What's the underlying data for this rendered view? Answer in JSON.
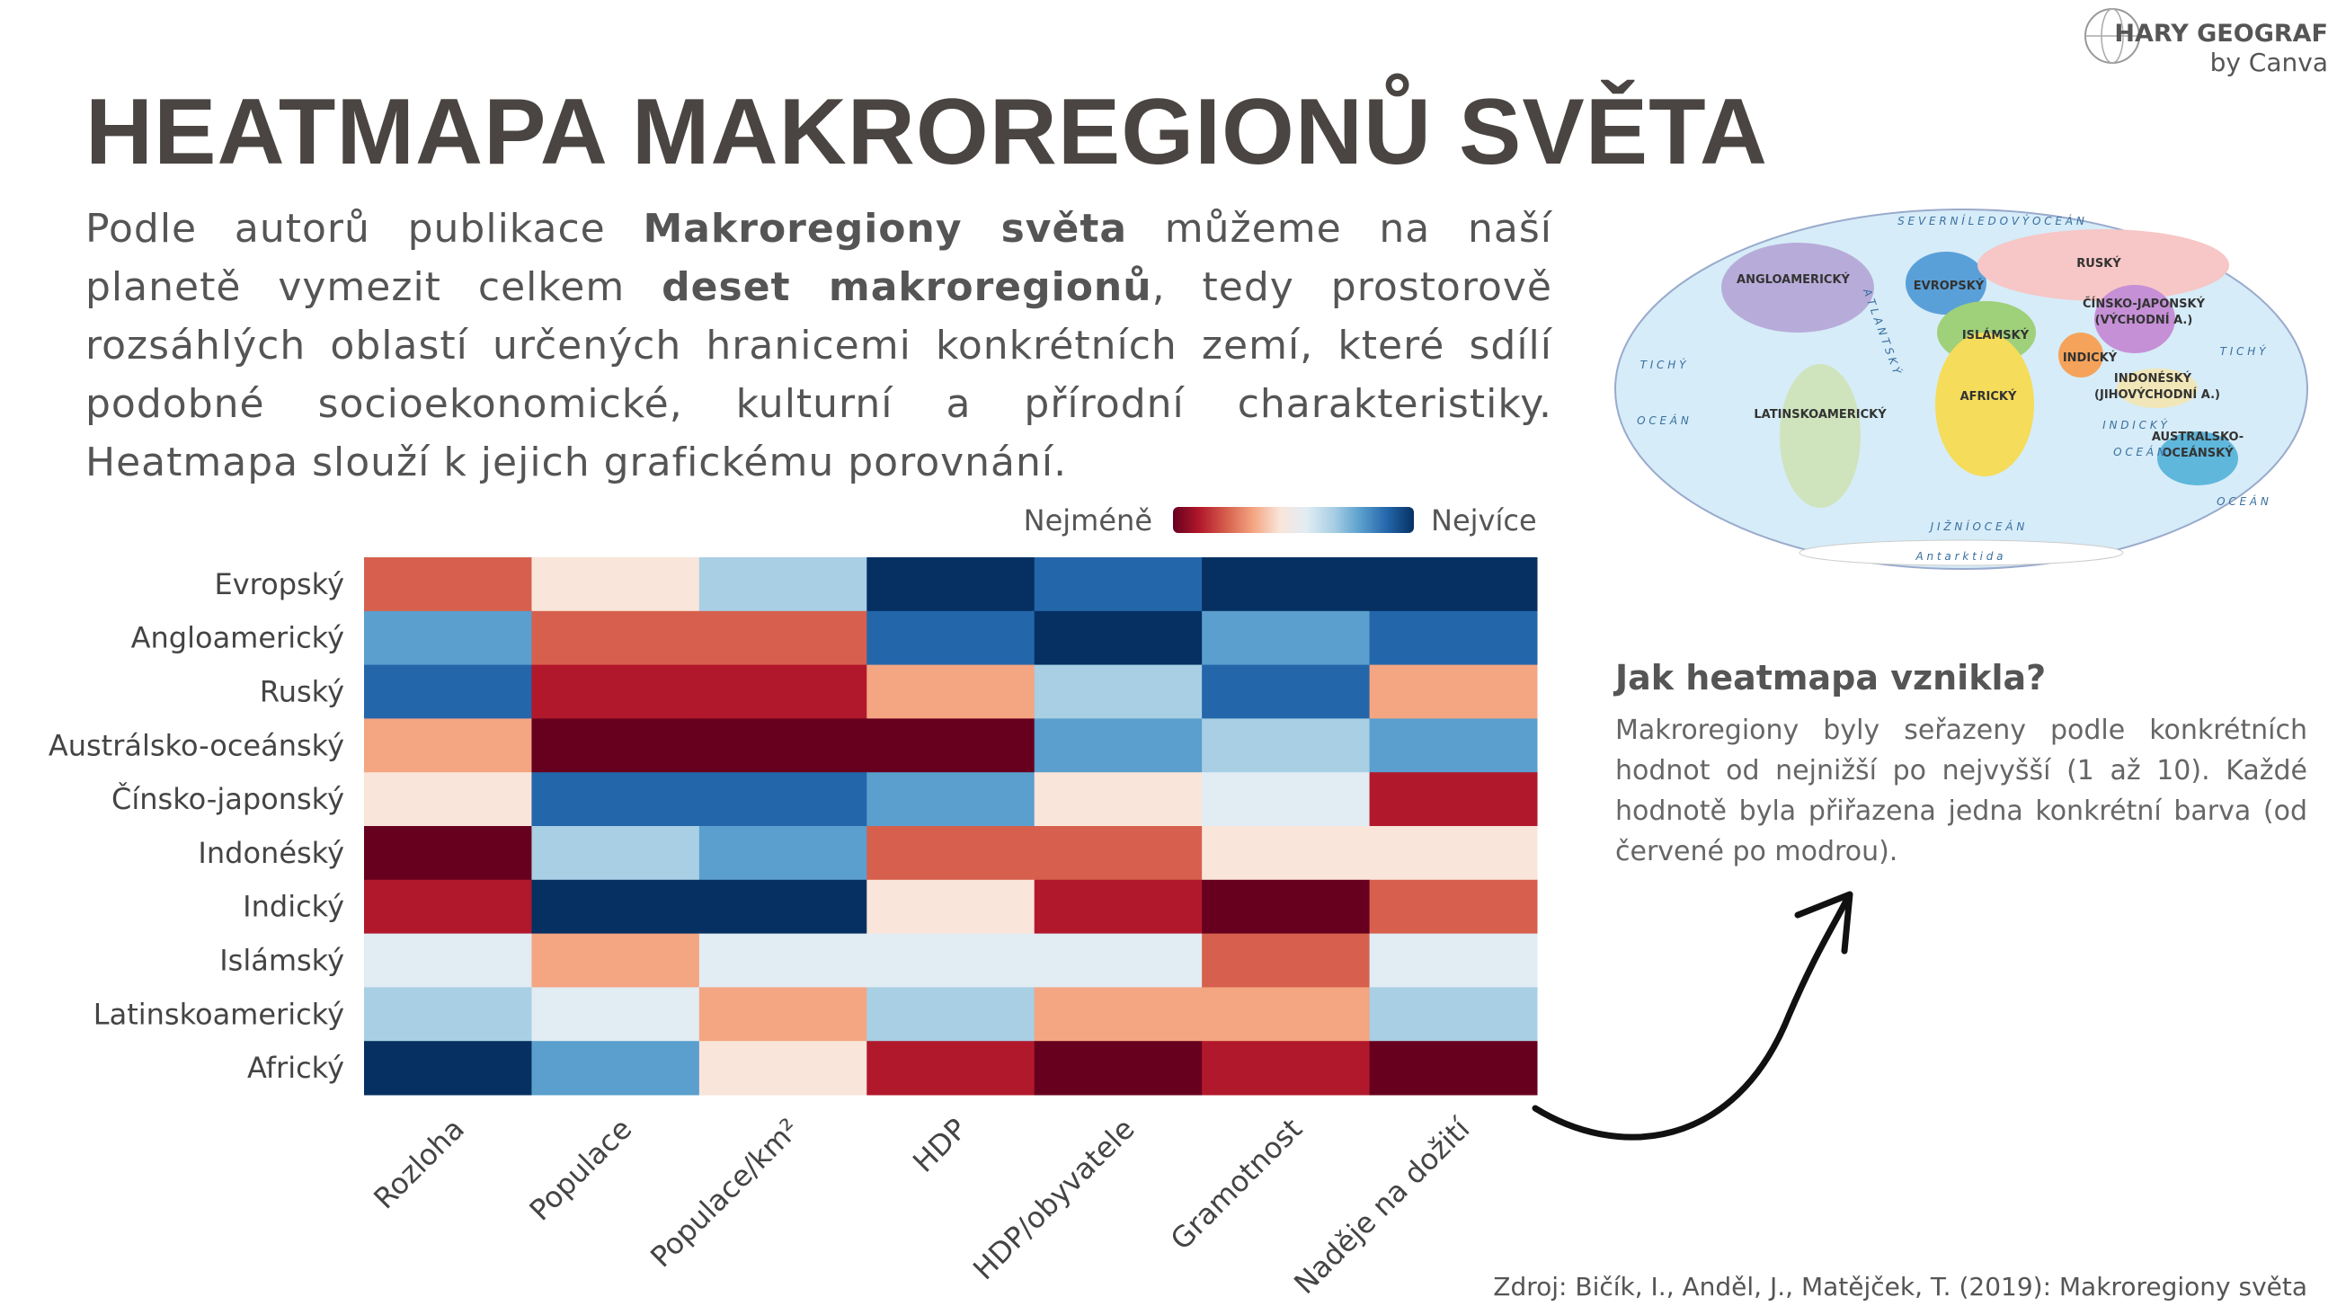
{
  "logo": {
    "name": "HARY GEOGRAF",
    "by": "by Canva"
  },
  "header": {
    "title": "HEATMAPA MAKROREGIONŮ SVĚTA"
  },
  "intro": {
    "parts": [
      "Podle autorů publikace ",
      "Makroregiony světa",
      " můžeme na naší planetě vymezit celkem ",
      "deset makroregionů",
      ", tedy prostorově rozsáhlých oblastí určených hranicemi konkrétních zemí, které sdílí podobné socioekonomické, kulturní a přírodní charakteristiky. Heatmapa slouží k jejich grafickému porovnání."
    ]
  },
  "chart_data": {
    "type": "heatmap",
    "categories": [
      "Rozloha",
      "Populace",
      "Populace/km²",
      "HDP",
      "HDP/obyvatele",
      "Gramotnost",
      "Naděje na dožití"
    ],
    "rows": [
      "Evropský",
      "Angloamerický",
      "Ruský",
      "Austrálsko-oceánský",
      "Čínsko-japonský",
      "Indonéský",
      "Indický",
      "Islámský",
      "Latinskoamerický",
      "Africký"
    ],
    "values": [
      [
        3,
        5,
        7,
        10,
        9,
        10,
        10
      ],
      [
        8,
        3,
        3,
        9,
        10,
        8,
        9
      ],
      [
        9,
        2,
        2,
        4,
        7,
        9,
        4
      ],
      [
        4,
        1,
        1,
        1,
        8,
        7,
        8
      ],
      [
        5,
        9,
        9,
        8,
        5,
        6,
        2
      ],
      [
        1,
        7,
        8,
        3,
        3,
        5,
        5
      ],
      [
        2,
        10,
        10,
        5,
        2,
        1,
        3
      ],
      [
        6,
        4,
        6,
        6,
        6,
        3,
        6
      ],
      [
        7,
        6,
        4,
        7,
        4,
        4,
        7
      ],
      [
        10,
        8,
        5,
        2,
        1,
        2,
        1
      ]
    ],
    "colors": [
      "#67001f",
      "#b2182b",
      "#d6604d",
      "#f4a582",
      "#f9e5da",
      "#e1ecf3",
      "#a8cfe4",
      "#5a9fcd",
      "#2466aa",
      "#053061"
    ],
    "legend": {
      "low": "Nejméně",
      "high": "Nejvíce"
    }
  },
  "map": {
    "regions": [
      "ANGLOAMERICKÝ",
      "EVROPSKÝ",
      "RUSKÝ",
      "ISLÁMSKÝ",
      "ČÍNSKO-JAPONSKÝ",
      "(VÝCHODNÍ A.)",
      "INDICKÝ",
      "INDONÉSKÝ",
      "(JIHOVÝCHODNÍ A.)",
      "AFRICKÝ",
      "LATINSKOAMERICKÝ",
      "AUSTRALSKO-",
      "OCEÁNSKÝ"
    ],
    "oceans": [
      "S E V E R N Í   L E D O V Ý   O C E Á N",
      "T I C H Ý",
      "O C E Á N",
      "T I C H Ý",
      "O C E Á N",
      "A T L A N T S K Ý",
      "I N D I C K Ý",
      "O C E Á N",
      "J I Ž N Í   O C E Á N",
      "A n t a r k t i d a"
    ]
  },
  "sidebar": {
    "heading": "Jak heatmapa vznikla?",
    "text": "Makroregiony byly seřazeny podle konkrétních hodnot od nejnižší po nejvyšší (1 až 10). Každé hodnotě byla přiřazena jedna konkrétní barva (od červené po modrou)."
  },
  "source": "Zdroj: Bičík, I., Anděl, J., Matějček, T. (2019): Makroregiony světa"
}
